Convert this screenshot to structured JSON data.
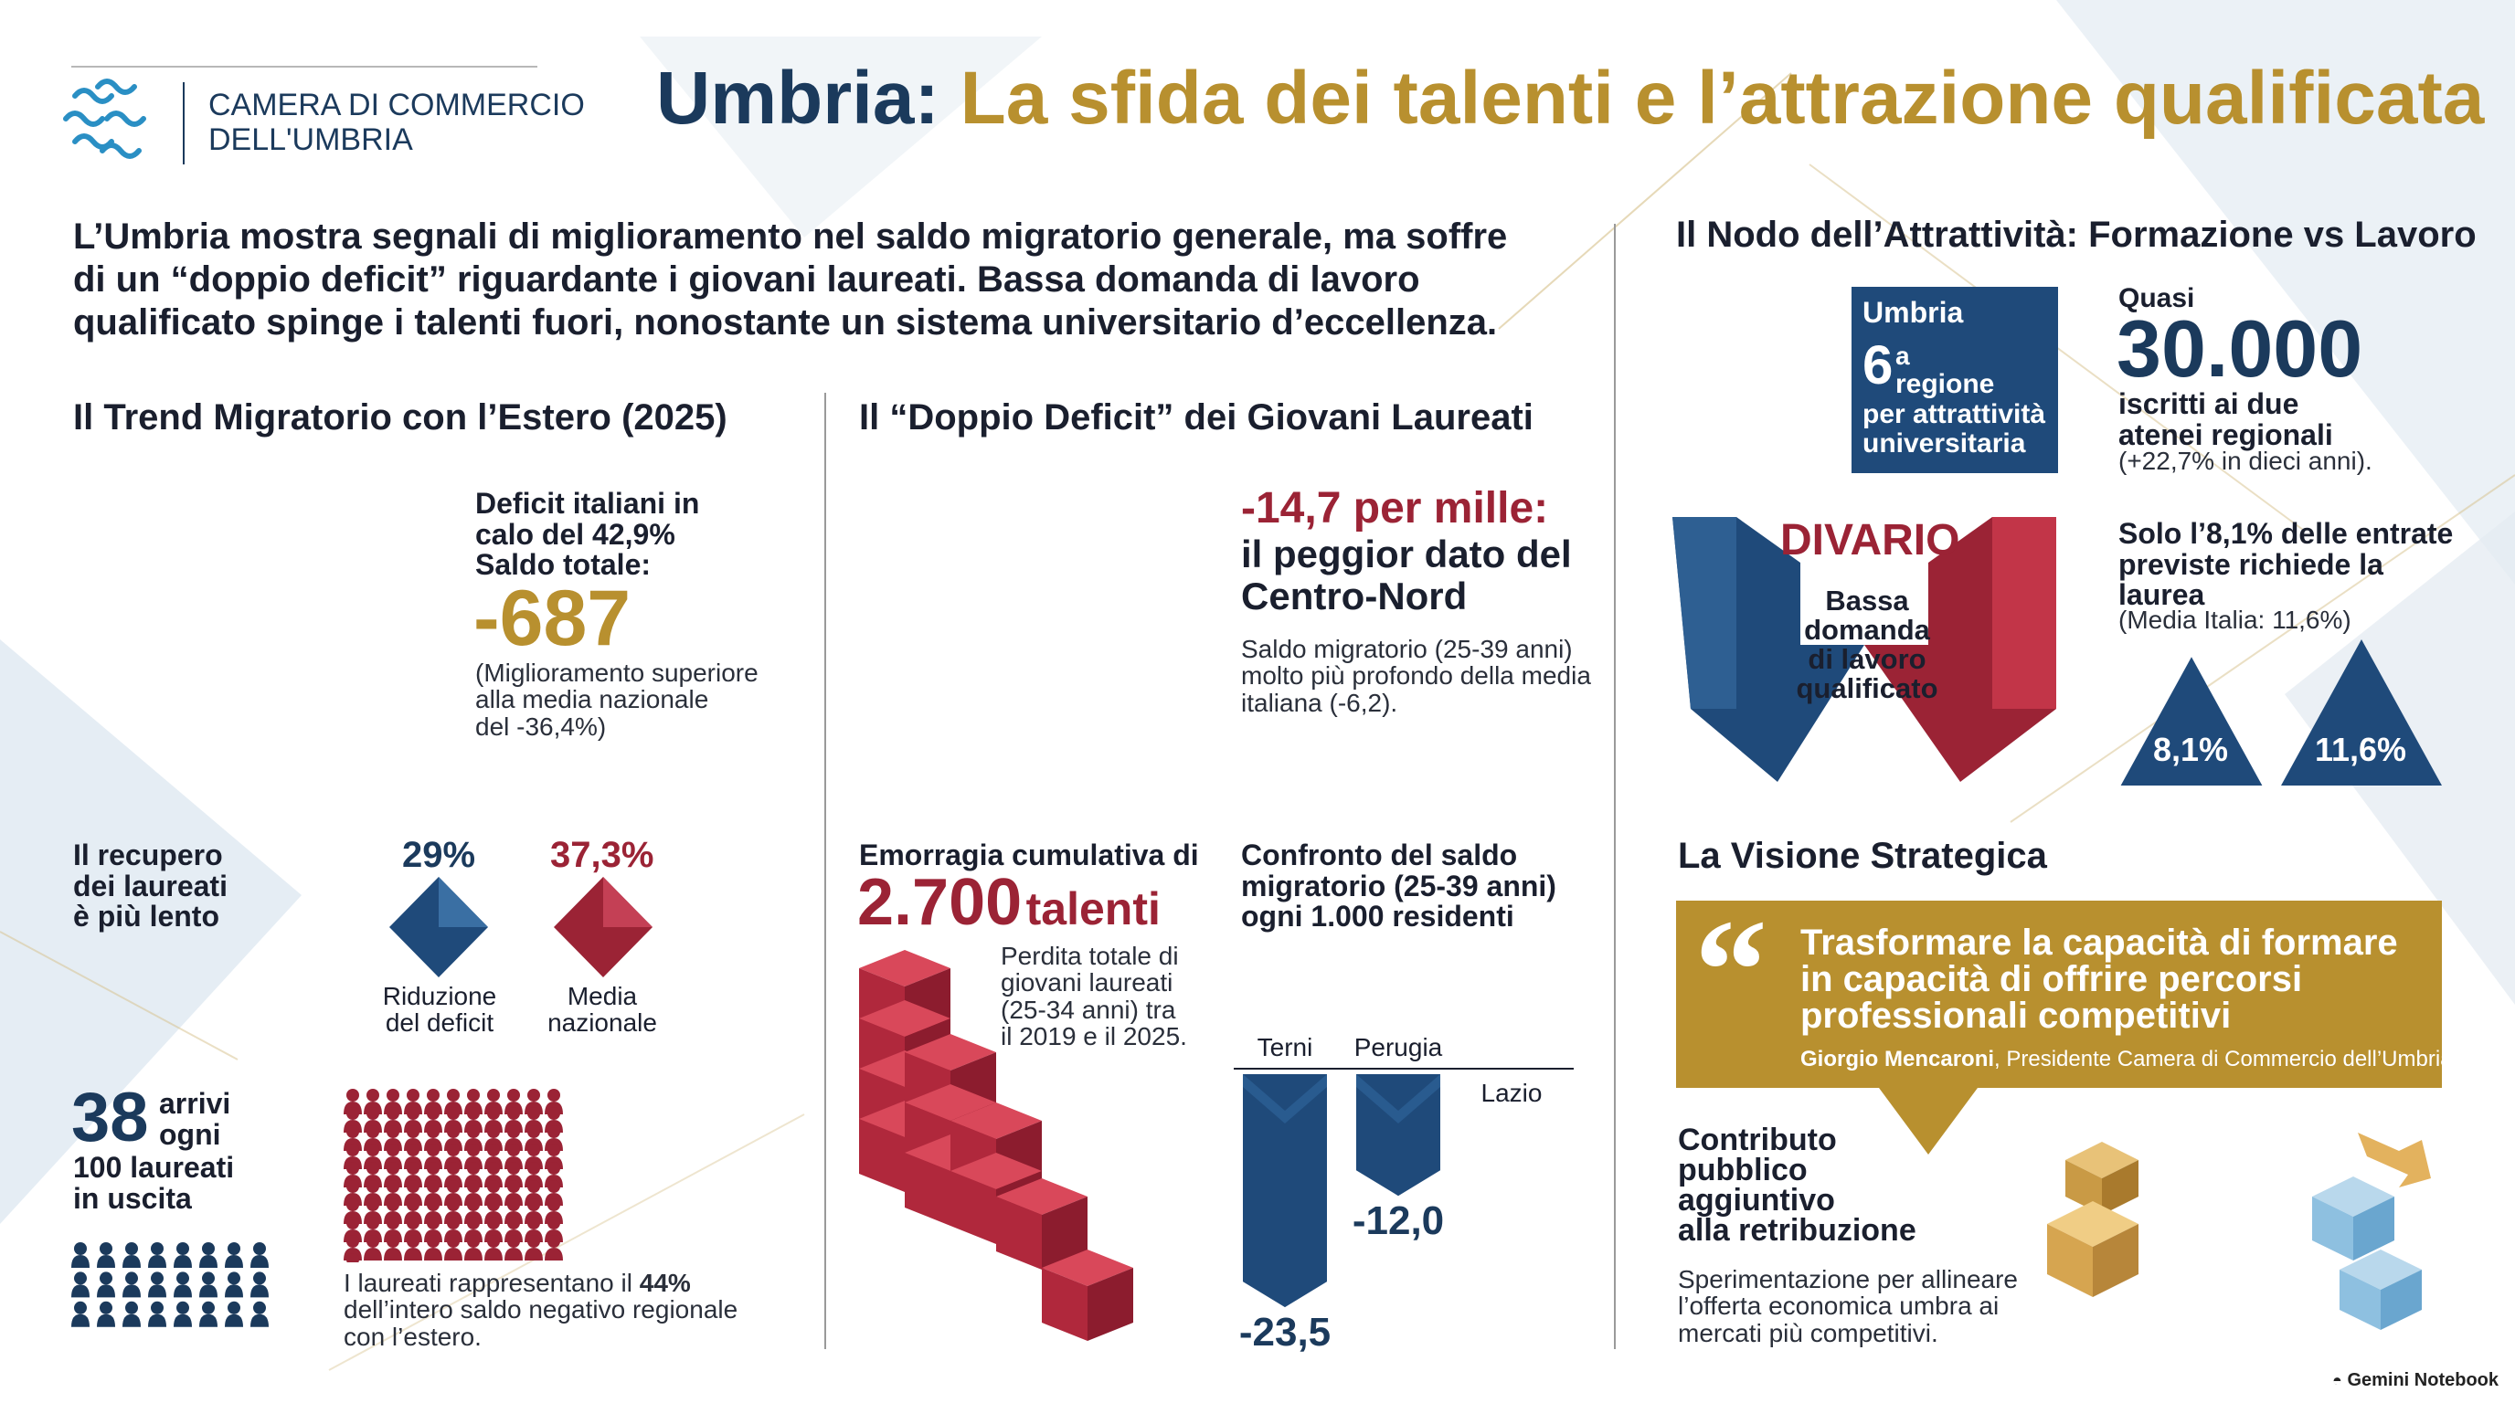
{
  "brand": {
    "line1": "CAMERA DI COMMERCIO",
    "line2": "DELL'UMBRIA"
  },
  "title": {
    "region": "Umbria:",
    "headline": "La sfida dei talenti e l’attrazione qualificata"
  },
  "intro": "L’Umbria mostra segnali di miglioramento nel saldo migratorio generale, ma soffre di un “doppio deficit” riguardante i giovani laureati. Bassa domanda di lavoro qualificato spinge i talenti fuori, nonostante un sistema universitario d’eccellenza.",
  "trend": {
    "heading": "Il Trend Migratorio con l’Estero (2025)",
    "deficit_line1": "Deficit italiani in",
    "deficit_line2": "calo del 42,9%",
    "saldo_label": "Saldo totale:",
    "saldo_value": "-687",
    "improvement_1": "(Miglioramento superiore",
    "improvement_2": "alla media nazionale",
    "improvement_3": "del -36,4%)",
    "recovery_1": "Il recupero",
    "recovery_2": "dei laureati",
    "recovery_3": "è più lento",
    "stat_a_value": "29%",
    "stat_a_label_1": "Riduzione",
    "stat_a_label_2": "del deficit",
    "stat_b_value": "37,3%",
    "stat_b_label_1": "Media",
    "stat_b_label_2": "nazionale",
    "arrivals_number": "38",
    "arrivals_1": "arrivi",
    "arrivals_2": "ogni",
    "arrivals_3": "100 laureati",
    "arrivals_4": "in uscita",
    "arrivals_icons": 38,
    "departures_icons": 100,
    "share_pre": "I laureati rappresentano il ",
    "share_value": "44%",
    "share_post_1": "dell’intero saldo negativo regionale",
    "share_post_2": "con l’estero."
  },
  "deficit": {
    "heading": "Il “Doppio Deficit” dei Giovani Laureati",
    "value": "-14,7 per mille:",
    "worst_1": "il peggior dato del",
    "worst_2": "Centro-Nord",
    "note_1": "Saldo migratorio (25-39 anni)",
    "note_2": "molto più profondo della media",
    "note_3": "italiana (-6,2).",
    "hemorrhage_label": "Emorragia cumulativa di",
    "hemorrhage_number": "2.700",
    "hemorrhage_unit": "talenti",
    "loss_1": "Perdita totale di",
    "loss_2": "giovani laureati",
    "loss_3": "(25-34 anni) tra",
    "loss_4": "il 2019 e il 2025.",
    "comparison_1": "Confronto del saldo",
    "comparison_2": "migratorio (25-39 anni)",
    "comparison_3": "ogni 1.000 residenti"
  },
  "chart_data": {
    "type": "bar",
    "categories": [
      "Terni",
      "Perugia",
      "Lazio"
    ],
    "values": [
      -23.5,
      -12.0,
      null
    ],
    "value_labels": [
      "-23,5",
      "-12,0",
      ""
    ],
    "colors": [
      "#1f4a7a",
      "#1f4a7a",
      "#1f4a7a"
    ]
  },
  "attractiveness": {
    "heading": "Il Nodo dell’Attrattività: Formazione vs Lavoro",
    "badge_region": "Umbria",
    "badge_rank": "6",
    "badge_sup": "a",
    "badge_word": "regione",
    "badge_line2": "per attrattività",
    "badge_line3": "universitaria",
    "quasi": "Quasi",
    "enrolled_number": "30.000",
    "enrolled_1": "iscritti ai due",
    "enrolled_2": "atenei regionali",
    "enrolled_3": "(+22,7% in dieci anni).",
    "divario": "DIVARIO",
    "gap_1": "Bassa",
    "gap_2": "domanda",
    "gap_3": "di lavoro",
    "gap_4": "qualificato",
    "entry_1": "Solo l’8,1% delle entrate",
    "entry_2": "previste richiede la",
    "entry_3": "laurea",
    "entry_note": "(Media Italia: 11,6%)",
    "tri_umbria": "8,1%",
    "tri_italia": "11,6%",
    "tri_umbria_value": 8.1,
    "tri_italia_value": 11.6
  },
  "vision": {
    "heading": "La Visione Strategica",
    "quote_1": "Trasformare la capacità di formare",
    "quote_2": "in capacità di offrire percorsi",
    "quote_3": "professionali competitivi",
    "author": "Giorgio Mencaroni",
    "author_role": ", Presidente Camera di Commercio dell’Umbria",
    "contrib_1": "Contributo",
    "contrib_2": "pubblico",
    "contrib_3": "aggiuntivo",
    "contrib_4": "alla retribuzione",
    "exp_1": "Sperimentazione per allineare",
    "exp_2": "l’offerta economica umbra ai",
    "exp_3": "mercati più competitivi."
  },
  "footer": {
    "credit": "Gemini Notebook"
  },
  "colors": {
    "navy": "#1b3a5c",
    "gold": "#b8902f",
    "red": "#9b2335",
    "bar": "#1f4a7a"
  }
}
